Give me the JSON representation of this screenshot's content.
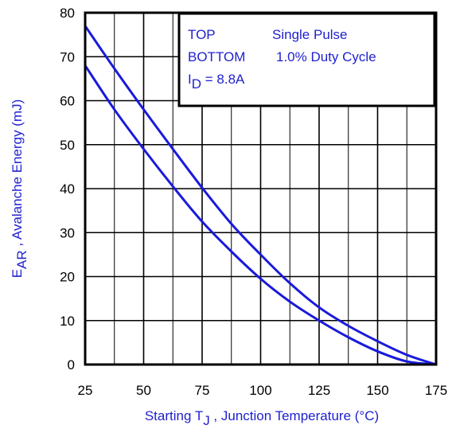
{
  "chart_data": {
    "type": "line",
    "xlabel": {
      "main": "Starting T",
      "sub": "J",
      "rest": " , Junction Temperature (°C)"
    },
    "ylabel": {
      "main": "E",
      "sub": "AR",
      "rest": " , Avalanche Energy (mJ)"
    },
    "xlim": [
      25,
      175
    ],
    "ylim": [
      0,
      80
    ],
    "x_ticks": [
      25,
      50,
      75,
      100,
      125,
      150,
      175
    ],
    "y_ticks": [
      0,
      10,
      20,
      30,
      40,
      50,
      60,
      70,
      80
    ],
    "grid": true,
    "legend_box": {
      "row1": {
        "left": "TOP",
        "right": "Single Pulse"
      },
      "row2": {
        "left": "BOTTOM",
        "right": "1.0% Duty Cycle"
      },
      "row3": {
        "main": "I",
        "sub": "D",
        "rest": " = 8.8A"
      }
    },
    "colors": {
      "series": "#1a1adb",
      "text": "#1f1fcf",
      "grid": "#000000"
    },
    "series": [
      {
        "x": [
          25,
          37.5,
          50,
          62.5,
          75,
          87.5,
          100,
          112.5,
          125,
          137.5,
          150,
          162.5,
          175
        ],
        "values": [
          77,
          67.3,
          58,
          49,
          40.2,
          32,
          25,
          18.5,
          13,
          8.8,
          5.3,
          2.2,
          0
        ]
      },
      {
        "x": [
          25,
          37.5,
          50,
          62.5,
          75,
          87.5,
          100,
          112.5,
          125,
          137.5,
          150,
          162.5,
          175
        ],
        "values": [
          68,
          58,
          49,
          40.5,
          32.5,
          25.7,
          19.5,
          14.3,
          10,
          6.2,
          3,
          0.7,
          0
        ]
      }
    ]
  }
}
